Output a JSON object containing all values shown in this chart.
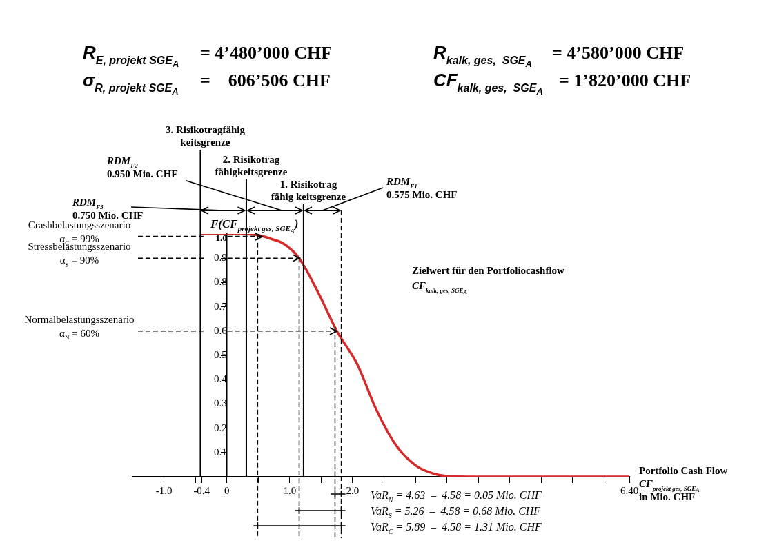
{
  "chart_data": {
    "type": "line",
    "xlabel": "Portfolio Cash Flow\nCF$_{projekt ges, SGE}$$_{A}$\nin Mio. CHF",
    "x": [
      -0.42,
      0.2,
      0.5,
      0.7,
      0.9,
      1.15,
      1.45,
      1.75,
      2.07,
      2.38,
      2.69,
      3.01,
      3.3,
      3.5,
      4.0,
      6.4
    ],
    "values": [
      1.0,
      1.0,
      0.995,
      0.98,
      0.96,
      0.9,
      0.76,
      0.6,
      0.465,
      0.275,
      0.13,
      0.045,
      0.012,
      0.003,
      0,
      0
    ],
    "color": "#d62a2a",
    "marker": "none",
    "line_style": "solid",
    "grid": false,
    "xlim": [
      -1.5,
      6.4
    ],
    "xticks": [
      {
        "value": -1,
        "label": "-1.0"
      },
      {
        "value": -0.5,
        "label": null
      },
      {
        "value": -0.4,
        "label": "-0.4"
      },
      0,
      {
        "value": 0.5,
        "label": null
      },
      {
        "value": 1,
        "label": "1.0"
      },
      {
        "value": 1.5,
        "label": null
      },
      {
        "value": 2,
        "label": "2.0"
      },
      {
        "value": 2.5,
        "label": null
      },
      {
        "value": 3,
        "label": null
      },
      {
        "value": 3.5,
        "label": null
      },
      {
        "value": 4,
        "label": null
      },
      {
        "value": 4.5,
        "label": null
      },
      {
        "value": 5,
        "label": null
      },
      {
        "value": 5.5,
        "label": null
      },
      {
        "value": 6,
        "label": null
      },
      {
        "value": 6.4,
        "label": "6.40"
      }
    ],
    "ylim": [
      0,
      1.0
    ],
    "yticks": [
      0.1,
      0.2,
      0.3,
      0.4,
      0.5,
      0.6,
      0.7,
      0.8,
      0.9,
      {
        "value": 1,
        "label": "1.0"
      }
    ],
    "ref_lines": [
      {
        "axis": "x",
        "value": -0.42,
        "label": "3. Risikotragfähig\nkeitsgrenze",
        "color": "#000000",
        "line_style": "solid"
      },
      {
        "axis": "x",
        "value": 0.31,
        "label": "2. Risikotrag\nfähigkeitsgrenze",
        "color": "#000000",
        "line_style": "solid"
      },
      {
        "axis": "x",
        "value": 1.22,
        "label": "1. Risikotrag\nfähig keitsgrenze",
        "color": "#000000",
        "line_style": "solid"
      },
      {
        "axis": "x",
        "value": 1.82,
        "color": "#000000",
        "line_style": "dashed"
      },
      {
        "axis": "x",
        "value": 0.49,
        "color": "#000000",
        "line_style": "dashed"
      },
      {
        "axis": "x",
        "value": 1.15,
        "color": "#000000",
        "line_style": "dashed"
      },
      {
        "axis": "x",
        "value": 1.72,
        "color": "#000000",
        "line_style": "dashed"
      },
      {
        "axis": "y",
        "value": 0.99,
        "label": "Crashbelastungsszenario\nα$_{C}$ = 99%",
        "color": "#000000",
        "line_style": "dashed"
      },
      {
        "axis": "y",
        "value": 0.9,
        "label": "Stressbelastungsszenario\nα$_{S}$ = 90%",
        "color": "#000000",
        "line_style": "dashed"
      },
      {
        "axis": "y",
        "value": 0.6,
        "label": "Normalbelastungsszenario\nα$_{N}$ = 60%",
        "color": "#000000",
        "line_style": "dashed"
      }
    ],
    "annotations": [
      "R$_{E, projekt SGE}$$_{A}$",
      "= 4’480’000 CHF",
      "σ$_{R, projekt SGE}$$_{A}$",
      "=    606’506 CHF",
      "R$_{kalk, ges,  SGE}$$_{A}$",
      "= 4’580’000 CHF",
      "CF$_{kalk, ges,  SGE}$$_{A}$",
      "= 1’820’000 CHF",
      "RDM$_{F3}$\n0.750 Mio. CHF",
      "RDM$_{F2}$\n0.950 Mio. CHF",
      "RDM$_{F1}$\n0.575 Mio. CHF",
      "F(CF$_{projekt ges, SGE}$$_{A}$)",
      "Zielwert für den Portfoliocashflow\nCF$_{kalk, ges, SGE}$$_{A}$",
      "VaR$_{N}$ = 4.63  –  4.58 = 0.05 Mio. CHF",
      "VaR$_{S}$ = 5.26  –  4.58 = 0.68 Mio. CHF",
      "VaR$_{C}$ = 5.89  –  4.58 = 1.31 Mio. CHF"
    ]
  }
}
